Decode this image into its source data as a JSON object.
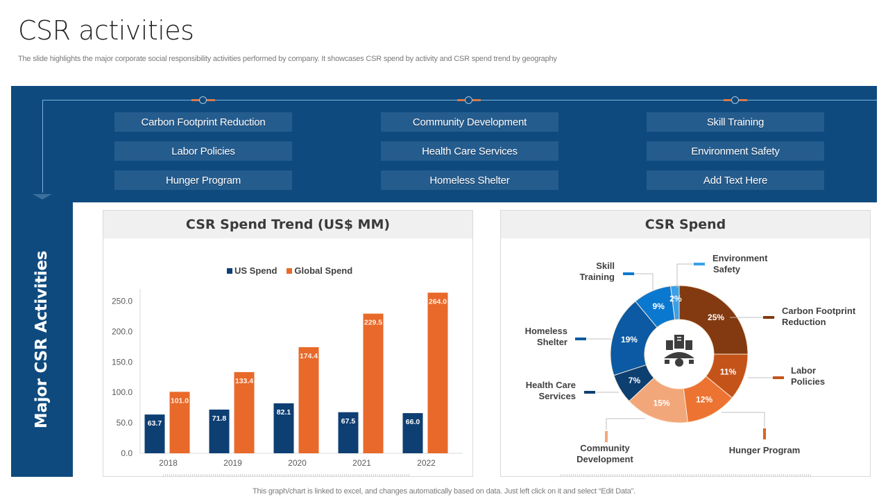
{
  "page": {
    "title": "CSR activities",
    "subtitle": "The slide highlights the major corporate social responsibility activities performed by company. It showcases CSR spend by activity  and CSR spend trend by  geography",
    "side_label": "Major CSR Activities",
    "footnote": "This graph/chart is linked to excel,  and changes automatically based on data. Just left click on it and select “Edit Data”."
  },
  "activities": {
    "columns": [
      [
        "Carbon Footprint Reduction",
        "Labor Policies",
        "Hunger Program"
      ],
      [
        "Community Development",
        "Health Care Services",
        "Homeless Shelter"
      ],
      [
        "Skill Training",
        "Environment Safety",
        "Add Text Here"
      ]
    ]
  },
  "colors": {
    "navy": "#0e4a7e",
    "us_spend": "#0e3f73",
    "global_spend": "#e8692a"
  },
  "chart_data": [
    {
      "type": "bar",
      "title": "CSR Spend Trend (US$ MM)",
      "xlabel": "",
      "ylabel": "",
      "categories": [
        "2018",
        "2019",
        "2020",
        "2021",
        "2022"
      ],
      "series": [
        {
          "name": "US Spend",
          "color": "#0e3f73",
          "values": [
            63.7,
            71.8,
            82.1,
            67.5,
            66.0
          ]
        },
        {
          "name": "Global Spend",
          "color": "#e8692a",
          "values": [
            101.0,
            133.4,
            174.4,
            229.5,
            264.0
          ]
        }
      ],
      "yticks": [
        "0.0",
        "50.0",
        "100.0",
        "150.0",
        "200.0",
        "250.0"
      ],
      "ylim": [
        0,
        270
      ],
      "grid": false,
      "legend": "top-center"
    },
    {
      "type": "pie",
      "style": "donut",
      "title": "CSR Spend",
      "slices": [
        {
          "label": "Carbon Footprint Reduction",
          "value": 25,
          "display": "25%",
          "color": "#833a10"
        },
        {
          "label": "Labor Policies",
          "value": 11,
          "display": "11%",
          "color": "#c4531a"
        },
        {
          "label": "Hunger Program",
          "value": 12,
          "display": "12%",
          "color": "#ec7332"
        },
        {
          "label": "Community Development",
          "value": 15,
          "display": "15%",
          "color": "#f2a77a"
        },
        {
          "label": "Health Care Services",
          "value": 7,
          "display": "7%",
          "color": "#0d3f70"
        },
        {
          "label": "Homeless Shelter",
          "value": 19,
          "display": "19%",
          "color": "#0b5aa3"
        },
        {
          "label": "Skill Training",
          "value": 9,
          "display": "9%",
          "color": "#0b78d0"
        },
        {
          "label": "Environment Safety",
          "value": 2,
          "display": "2%",
          "color": "#3aa0e8"
        }
      ],
      "center_icon": "corporate-building-people-icon",
      "legend": "callouts"
    }
  ],
  "pie_labels": {
    "environment": [
      "Environment",
      "Safety"
    ],
    "skill": [
      "Skill",
      "Training"
    ],
    "carbon": [
      "Carbon Footprint",
      "Reduction"
    ],
    "homeless": [
      "Homeless",
      "Shelter"
    ],
    "labor": [
      "Labor",
      "Policies"
    ],
    "health": [
      "Health Care",
      "Services"
    ],
    "community": [
      "Community",
      "Development"
    ],
    "hunger": [
      "Hunger Program"
    ]
  }
}
